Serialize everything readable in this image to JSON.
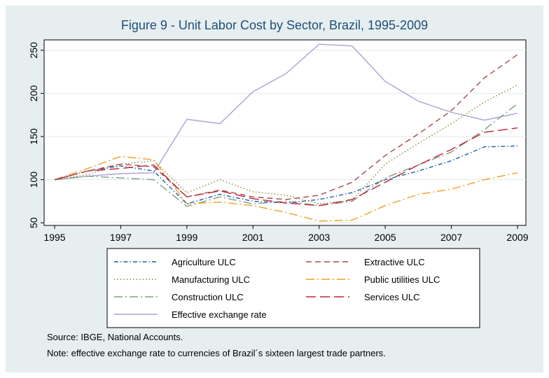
{
  "chart_data": {
    "type": "line",
    "title": "Figure 9 - Unit Labor Cost by Sector, Brazil, 1995-2009",
    "xlabel": "",
    "ylabel": "",
    "x": [
      1995,
      1996,
      1997,
      1998,
      1999,
      2000,
      2001,
      2002,
      2003,
      2004,
      2005,
      2006,
      2007,
      2008,
      2009
    ],
    "xticks": [
      "1995",
      "1997",
      "1999",
      "2001",
      "2003",
      "2005",
      "2007",
      "2009"
    ],
    "yticks": [
      "50",
      "100",
      "150",
      "200",
      "250"
    ],
    "xlim": [
      1995,
      2009
    ],
    "ylim": [
      47,
      262
    ],
    "grid": "horizontal",
    "legend_position": "bottom",
    "series": [
      {
        "name": "Agriculture ULC",
        "color": "#1f5fa8",
        "dash": "dashdot",
        "values": [
          100,
          110,
          116,
          110,
          72,
          83,
          75,
          73,
          77,
          85,
          100,
          110,
          122,
          138,
          139
        ]
      },
      {
        "name": "Extractive ULC",
        "color": "#a84a4a",
        "dash": "dash",
        "values": [
          100,
          110,
          118,
          115,
          80,
          88,
          80,
          77,
          82,
          97,
          128,
          153,
          180,
          218,
          245
        ]
      },
      {
        "name": "Manufacturing ULC",
        "color": "#8a8a3a",
        "dash": "dot",
        "values": [
          100,
          106,
          118,
          122,
          85,
          100,
          86,
          82,
          72,
          76,
          118,
          142,
          165,
          190,
          210
        ]
      },
      {
        "name": "Public utilities ULC",
        "color": "#f0a020",
        "dash": "longdashdot",
        "values": [
          100,
          113,
          127,
          123,
          72,
          74,
          70,
          62,
          52,
          53,
          70,
          83,
          89,
          100,
          108
        ]
      },
      {
        "name": "Construction ULC",
        "color": "#7f9f7f",
        "dash": "longdashdot",
        "values": [
          100,
          104,
          102,
          100,
          69,
          80,
          72,
          75,
          70,
          75,
          102,
          117,
          132,
          158,
          188
        ]
      },
      {
        "name": "Services ULC",
        "color": "#c0243c",
        "dash": "longdash",
        "values": [
          100,
          110,
          113,
          117,
          80,
          87,
          78,
          73,
          70,
          77,
          97,
          117,
          135,
          155,
          160
        ]
      },
      {
        "name": "Effective exchange rate",
        "color": "#a9a4d6",
        "dash": "solid",
        "values": [
          100,
          104,
          107,
          108,
          170,
          165,
          202,
          223,
          257,
          255,
          214,
          191,
          178,
          169,
          177
        ]
      }
    ]
  },
  "notes": {
    "source": "Source: IBGE, National Accounts.",
    "note": "Note: effective exchange rate to currencies of Brazil´s sixteen largest trade partners."
  }
}
